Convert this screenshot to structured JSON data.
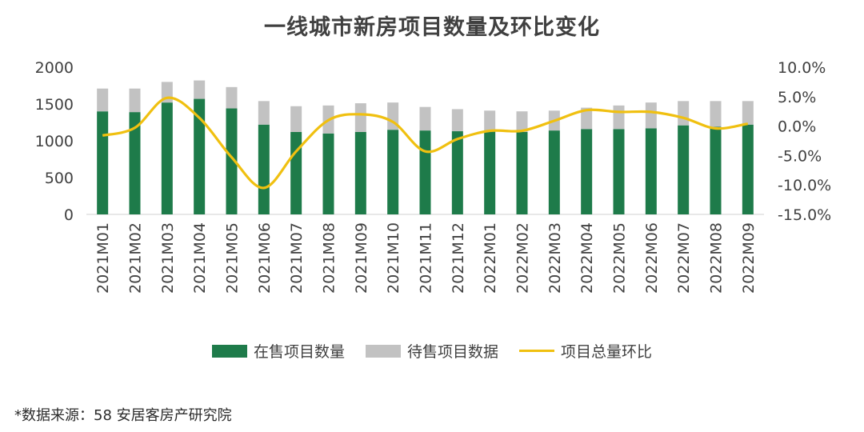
{
  "title": "一线城市新房项目数量及环比变化",
  "source": "*数据来源：58 安居客房产研究院",
  "colors": {
    "onSale": "#1e7b4a",
    "pending": "#c2c2c2",
    "ratio": "#f0c010",
    "axis": "#d0d0d0",
    "text": "#404040"
  },
  "chart_data": {
    "type": "bar",
    "stacked": true,
    "categories": [
      "2021M01",
      "2021M02",
      "2021M03",
      "2021M04",
      "2021M05",
      "2021M06",
      "2021M07",
      "2021M08",
      "2021M09",
      "2021M10",
      "2021M11",
      "2021M12",
      "2022M01",
      "2022M02",
      "2022M03",
      "2022M04",
      "2022M05",
      "2022M06",
      "2022M07",
      "2022M08",
      "2022M09"
    ],
    "series": [
      {
        "name": "在售项目数量",
        "type": "bar",
        "axis": "left",
        "values": [
          1400,
          1390,
          1520,
          1570,
          1440,
          1220,
          1120,
          1100,
          1120,
          1150,
          1140,
          1130,
          1130,
          1120,
          1140,
          1160,
          1160,
          1170,
          1210,
          1190,
          1220
        ]
      },
      {
        "name": "待售项目数据",
        "type": "bar",
        "axis": "left",
        "values": [
          310,
          320,
          280,
          250,
          290,
          320,
          350,
          380,
          390,
          370,
          320,
          300,
          280,
          280,
          270,
          290,
          320,
          350,
          330,
          350,
          320
        ]
      },
      {
        "name": "项目总量环比",
        "type": "line",
        "axis": "right",
        "smooth": true,
        "values": [
          -1.6,
          -0.3,
          4.8,
          1.4,
          -5.3,
          -10.5,
          -4.3,
          1.0,
          2.0,
          0.7,
          -4.3,
          -2.2,
          -0.8,
          -0.8,
          0.9,
          2.7,
          2.4,
          2.4,
          1.4,
          -0.4,
          0.4
        ]
      }
    ],
    "yAxisLeft": {
      "min": 0,
      "max": 2000,
      "ticks": [
        "0",
        "500",
        "1000",
        "1500",
        "2000"
      ]
    },
    "yAxisRight": {
      "min": -15,
      "max": 10,
      "ticks": [
        "-15.0%",
        "-10.0%",
        "-5.0%",
        "0.0%",
        "5.0%",
        "10.0%"
      ]
    },
    "legend": "bottom"
  }
}
